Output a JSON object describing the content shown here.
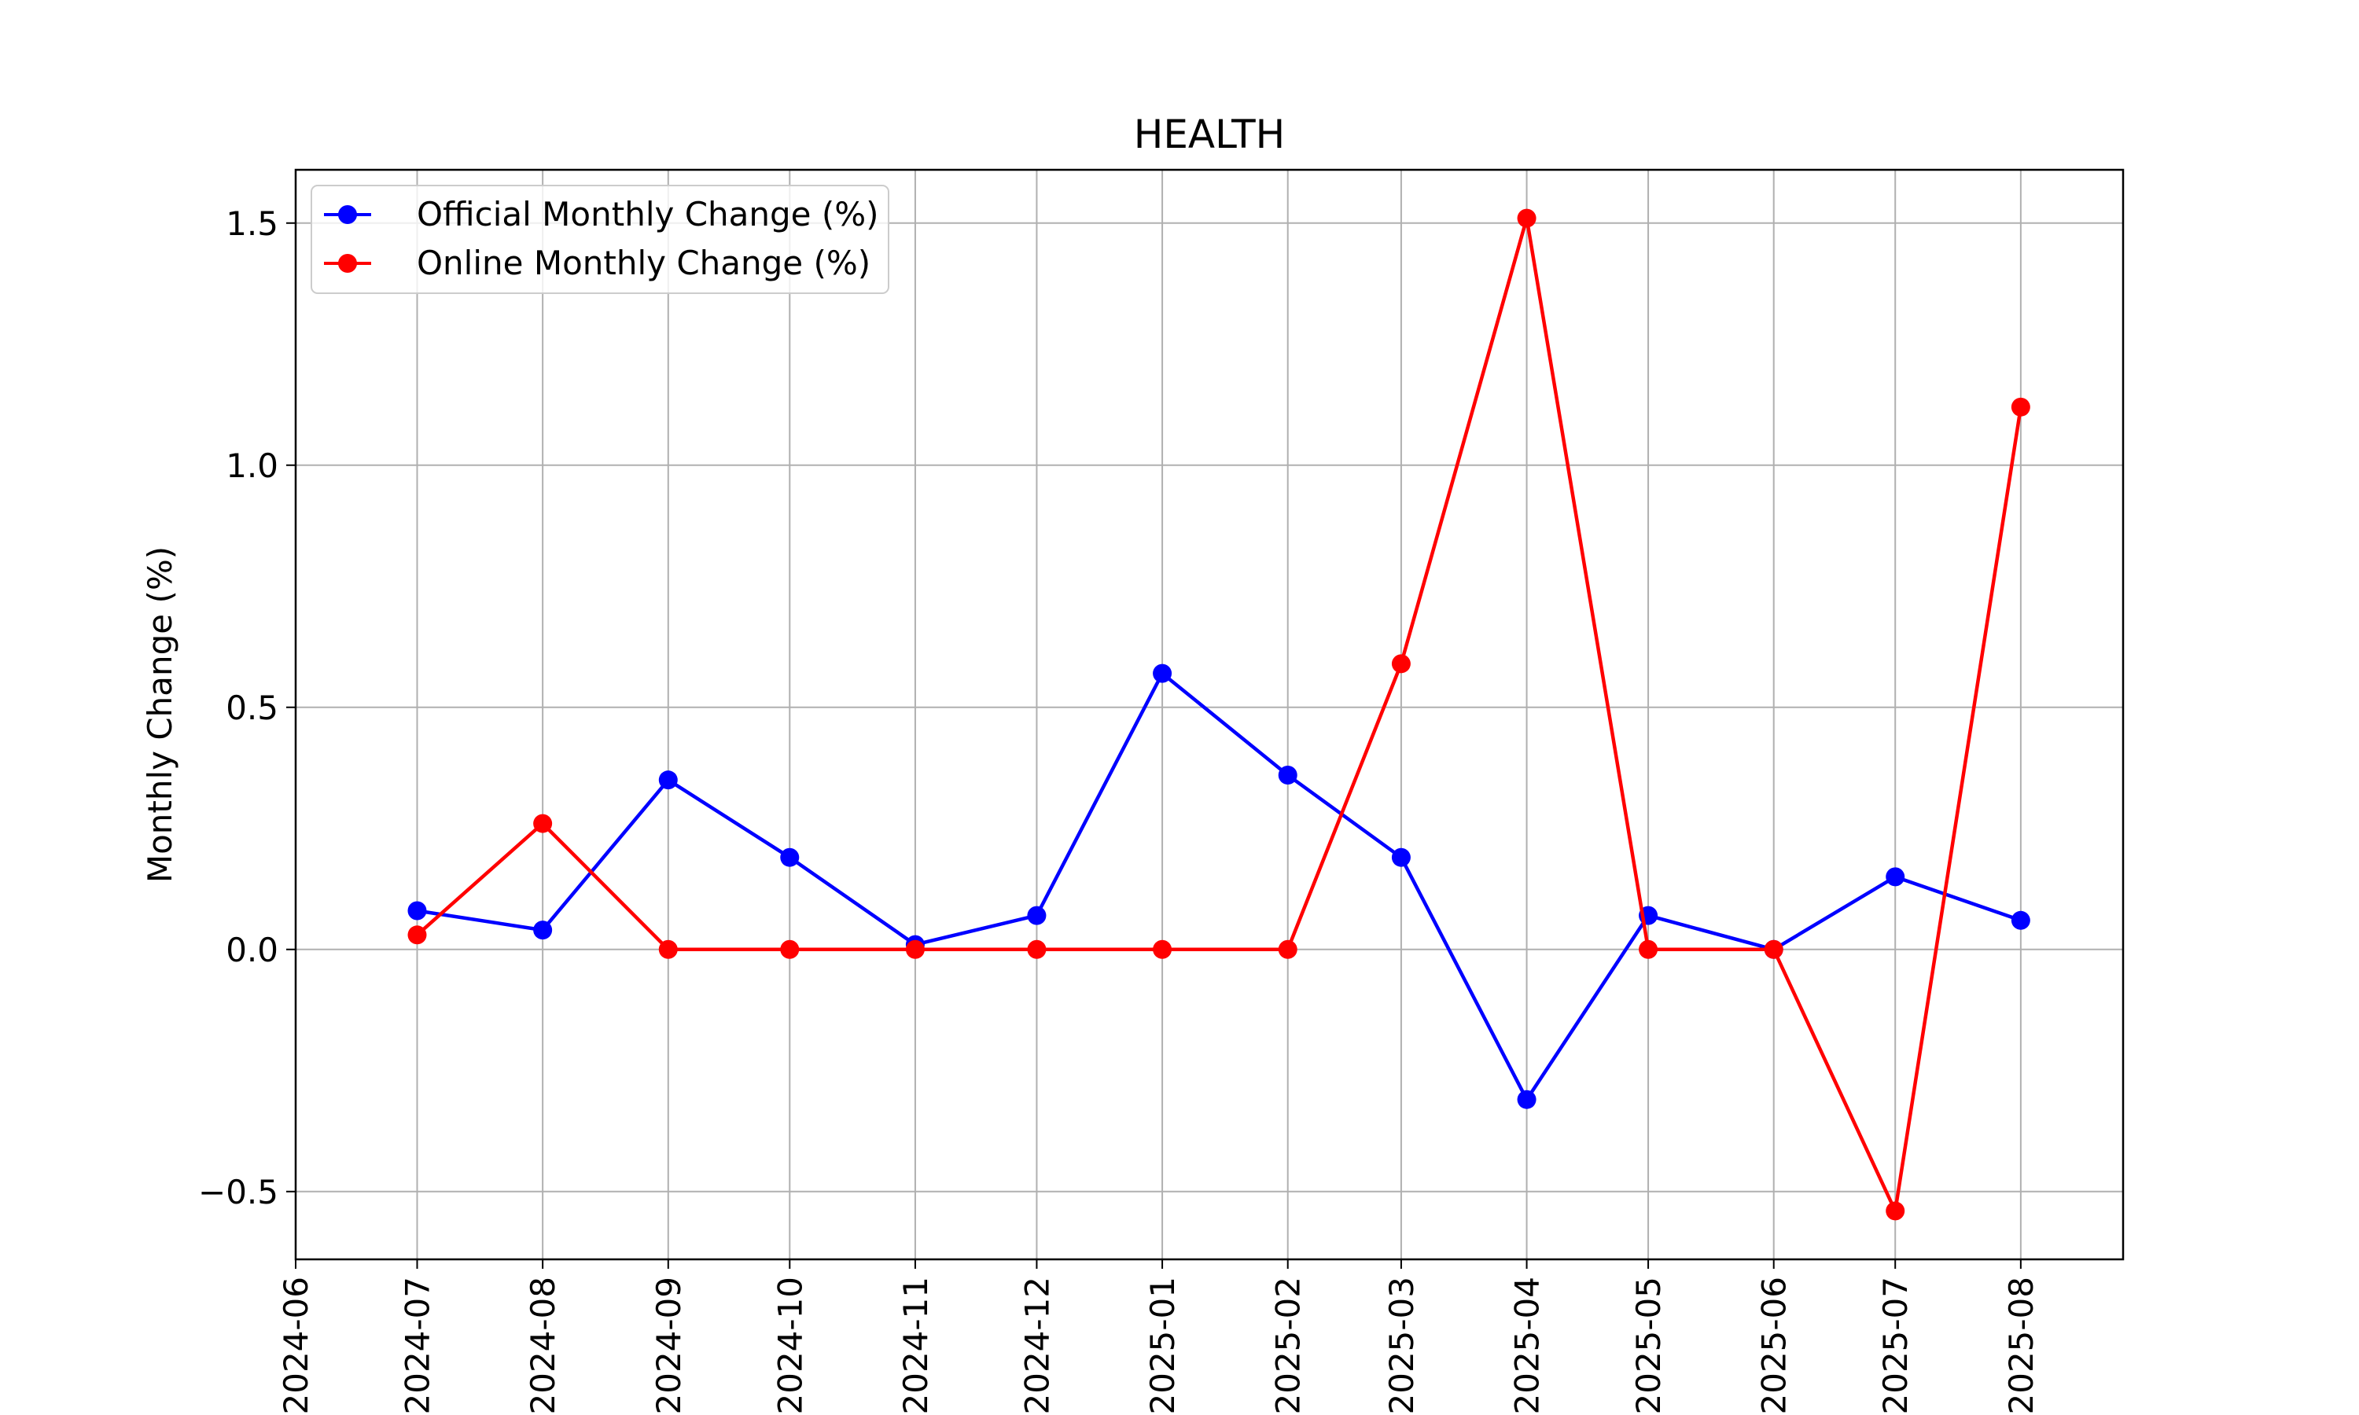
{
  "chart_data": {
    "type": "line",
    "title": "HEALTH",
    "xlabel": "",
    "ylabel": "Monthly Change (%)",
    "x_ticks": [
      "2024-06",
      "2024-07",
      "2024-08",
      "2024-09",
      "2024-10",
      "2024-11",
      "2024-12",
      "2025-01",
      "2025-02",
      "2025-03",
      "2025-04",
      "2025-05",
      "2025-06",
      "2025-07",
      "2025-08"
    ],
    "y_ticks": [
      "−0.5",
      "0.0",
      "0.5",
      "1.0",
      "1.5"
    ],
    "y_tick_values": [
      -0.5,
      0.0,
      0.5,
      1.0,
      1.5
    ],
    "x": [
      "2024-07-01",
      "2024-08-01",
      "2024-09-01",
      "2024-10-01",
      "2024-11-01",
      "2024-12-01",
      "2025-01-01",
      "2025-02-01",
      "2025-03-01",
      "2025-04-01",
      "2025-05-01",
      "2025-06-01",
      "2025-07-01",
      "2025-08-01"
    ],
    "xlim": [
      "2024-06-01",
      "2025-08-01"
    ],
    "ylim": [
      -0.64,
      1.61
    ],
    "grid": true,
    "legend_position": "top-left",
    "series": [
      {
        "name": "Official Monthly Change (%)",
        "color": "#0000ff",
        "marker": "circle",
        "values": [
          0.08,
          0.04,
          0.35,
          0.19,
          0.01,
          0.07,
          0.57,
          0.36,
          0.19,
          -0.31,
          0.07,
          0.0,
          0.15,
          0.06
        ]
      },
      {
        "name": "Online Monthly Change (%)",
        "color": "#ff0000",
        "marker": "circle",
        "values": [
          0.03,
          0.26,
          0.0,
          0.0,
          0.0,
          0.0,
          0.0,
          0.0,
          0.59,
          1.51,
          0.0,
          0.0,
          -0.54,
          1.12
        ]
      }
    ]
  }
}
